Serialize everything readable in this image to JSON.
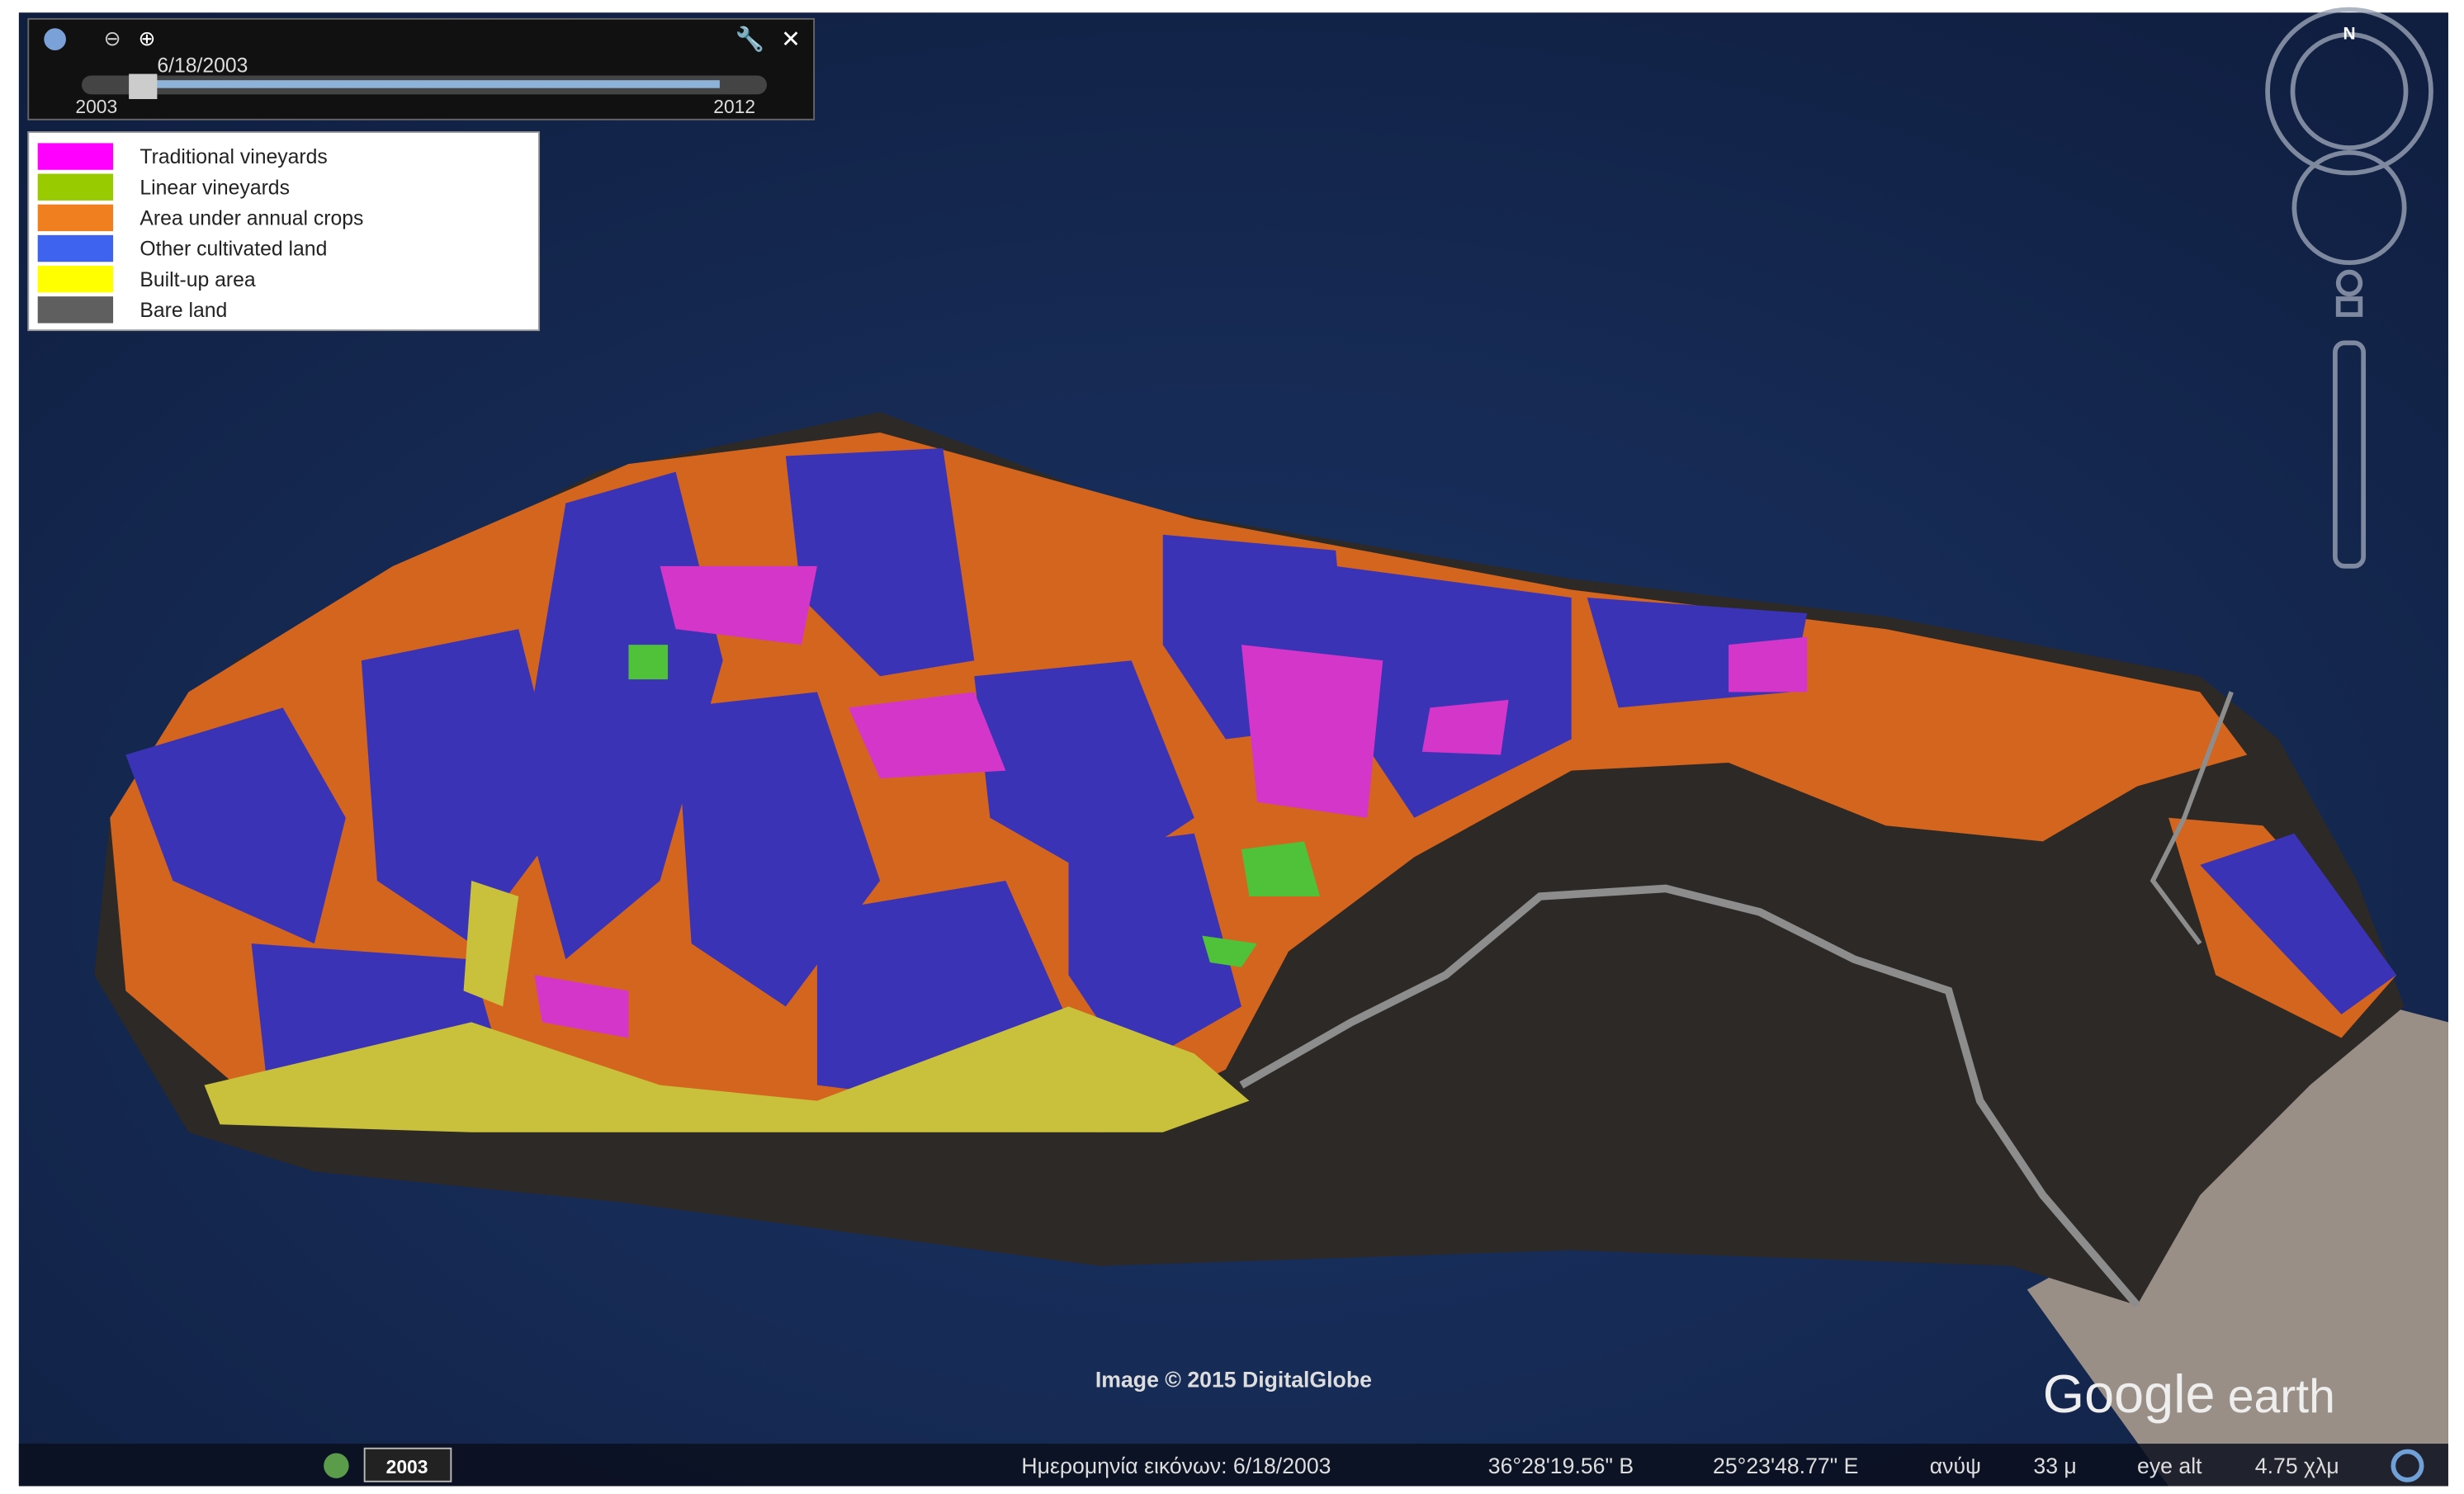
{
  "time_slider": {
    "date": "6/18/2003",
    "start": "2003",
    "end": "2012"
  },
  "legend": {
    "items": [
      {
        "label": "Traditional vineyards",
        "color": "#ff00ff"
      },
      {
        "label": "Linear vineyards",
        "color": "#99cc00"
      },
      {
        "label": "Area under annual crops",
        "color": "#f07f20"
      },
      {
        "label": "Other cultivated land",
        "color": "#3d63ef"
      },
      {
        "label": "Built-up area",
        "color": "#ffff00"
      },
      {
        "label": "Bare land",
        "color": "#5f5f5f"
      }
    ]
  },
  "compass": "N",
  "attribution": "Image © 2015 DigitalGlobe",
  "logo": {
    "brand": "Google",
    "product": "earth"
  },
  "year_badge": "2003",
  "status_bar": {
    "date": "Ημερομηνία εικόνων: 6/18/2003",
    "latitude": "36°28'19.56\" Β",
    "longitude": "25°23'48.77\" Ε",
    "elevation_label": "ανύψ",
    "elevation": "33 μ",
    "eye_alt_label": "eye alt",
    "eye_alt": "4.75 χλμ"
  }
}
